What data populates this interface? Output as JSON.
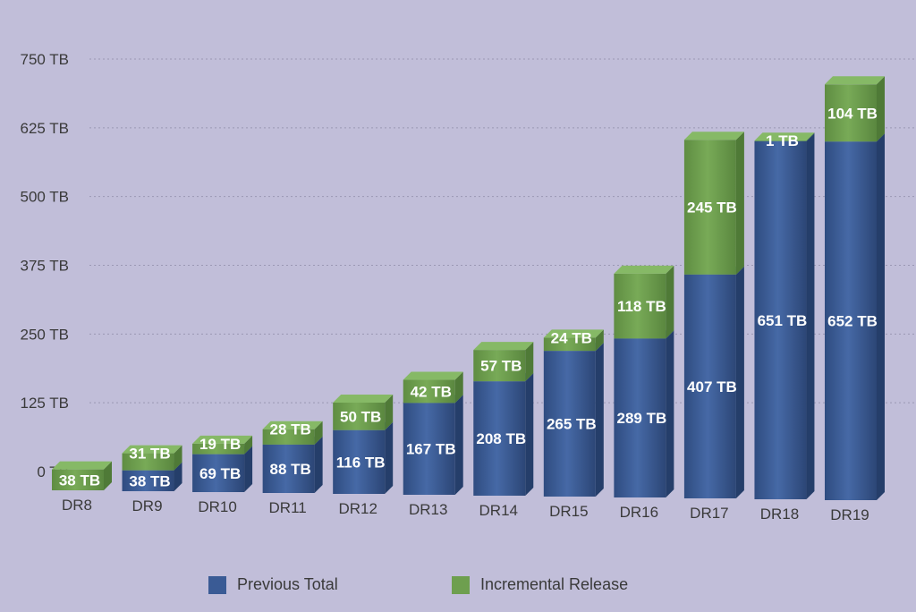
{
  "chart_data": {
    "type": "bar",
    "stacked": true,
    "style": "3d",
    "categories": [
      "DR8",
      "DR9",
      "DR10",
      "DR11",
      "DR12",
      "DR13",
      "DR14",
      "DR15",
      "DR16",
      "DR17",
      "DR18",
      "DR19"
    ],
    "series": [
      {
        "name": "Previous Total",
        "color": "#3a5b95",
        "values": [
          0,
          38,
          69,
          88,
          116,
          167,
          208,
          265,
          289,
          407,
          651,
          652
        ],
        "labels": [
          "",
          "38 TB",
          "69 TB",
          "88 TB",
          "116 TB",
          "167 TB",
          "208 TB",
          "265 TB",
          "289 TB",
          "407 TB",
          "651 TB",
          "652 TB"
        ]
      },
      {
        "name": "Incremental Release",
        "color": "#6e9f4f",
        "values": [
          38,
          31,
          19,
          28,
          50,
          42,
          57,
          24,
          118,
          245,
          1,
          104
        ],
        "labels": [
          "38 TB",
          "31 TB",
          "19 TB",
          "28 TB",
          "50 TB",
          "42 TB",
          "57 TB",
          "24 TB",
          "118 TB",
          "245 TB",
          "1 TB",
          "104 TB"
        ]
      }
    ],
    "y_ticks": [
      {
        "value": 0,
        "label": "0 TB"
      },
      {
        "value": 125,
        "label": "125 TB"
      },
      {
        "value": 250,
        "label": "250 TB"
      },
      {
        "value": 375,
        "label": "375 TB"
      },
      {
        "value": 500,
        "label": "500 TB"
      },
      {
        "value": 625,
        "label": "625 TB"
      },
      {
        "value": 750,
        "label": "750 TB"
      }
    ],
    "ylim": [
      0,
      750
    ],
    "grid": true,
    "legend_position": "bottom",
    "title": "",
    "xlabel": "",
    "ylabel": ""
  },
  "legend": {
    "previous_label": "Previous Total",
    "incremental_label": "Incremental Release"
  }
}
